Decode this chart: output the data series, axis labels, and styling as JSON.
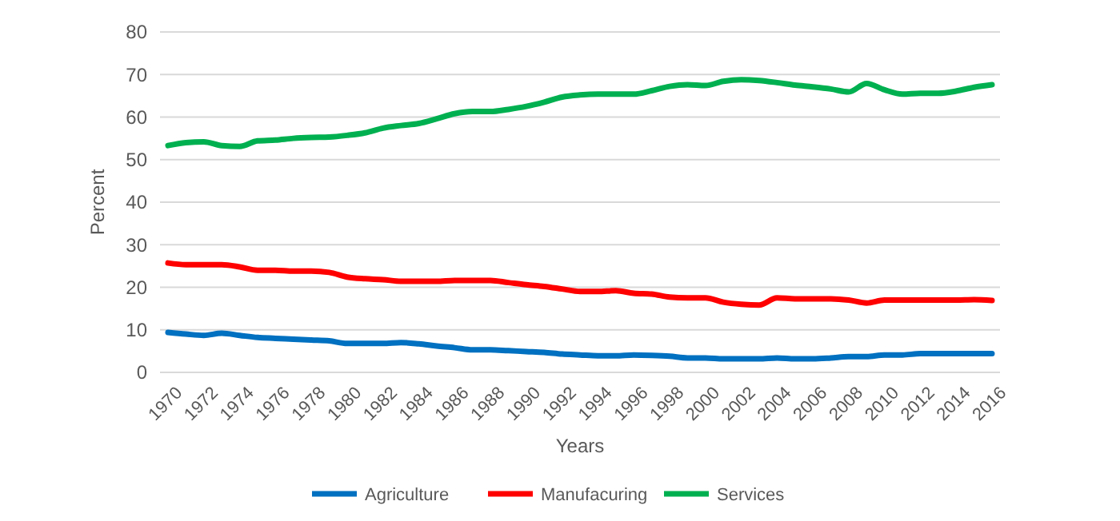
{
  "chart_data": {
    "type": "line",
    "xlabel": "Years",
    "ylabel": "Percent",
    "categories": [
      "1970",
      null,
      "1972",
      null,
      "1974",
      null,
      "1976",
      null,
      "1978",
      null,
      "1980",
      null,
      "1982",
      null,
      "1984",
      null,
      "1986",
      null,
      "1988",
      null,
      "1990",
      null,
      "1992",
      null,
      "1994",
      null,
      "1996",
      null,
      "1998",
      null,
      "2000",
      null,
      "2002",
      null,
      "2004",
      null,
      "2006",
      null,
      "2008",
      null,
      "2010",
      null,
      "2012",
      null,
      "2014",
      null,
      "2016"
    ],
    "series": [
      {
        "name": "Agriculture",
        "color": "#0070c0",
        "values": [
          9.4,
          9,
          8.7,
          9.2,
          8.7,
          8.2,
          8,
          7.8,
          7.6,
          7.4,
          6.8,
          6.8,
          6.8,
          7,
          6.7,
          6.2,
          5.8,
          5.3,
          5.3,
          5.1,
          4.9,
          4.7,
          4.3,
          4.1,
          3.9,
          3.9,
          4.1,
          4,
          3.8,
          3.4,
          3.4,
          3.2,
          3.2,
          3.2,
          3.4,
          3.2,
          3.2,
          3.4,
          3.7,
          3.7,
          4.1,
          4.1,
          4.4,
          4.4,
          4.4,
          4.4,
          4.4
        ]
      },
      {
        "name": "Manufacuring",
        "color": "#ff0000",
        "values": [
          25.7,
          25.3,
          25.3,
          25.3,
          24.8,
          24,
          24,
          23.8,
          23.8,
          23.5,
          22.4,
          22,
          21.8,
          21.4,
          21.4,
          21.4,
          21.6,
          21.6,
          21.6,
          21.1,
          20.6,
          20.2,
          19.6,
          19,
          19,
          19.2,
          18.6,
          18.4,
          17.7,
          17.5,
          17.5,
          16.5,
          16,
          15.8,
          17.5,
          17.3,
          17.3,
          17.3,
          17,
          16.3,
          17,
          17,
          17,
          17,
          17,
          17.1,
          16.9
        ]
      },
      {
        "name": "Services",
        "color": "#00b050",
        "values": [
          53.3,
          54,
          54.2,
          53.3,
          53.1,
          54.4,
          54.6,
          55,
          55.2,
          55.3,
          55.7,
          56.3,
          57.4,
          58,
          58.5,
          59.6,
          60.8,
          61.3,
          61.3,
          61.8,
          62.5,
          63.5,
          64.7,
          65.2,
          65.4,
          65.4,
          65.4,
          66.2,
          67.2,
          67.6,
          67.4,
          68.4,
          68.8,
          68.6,
          68.1,
          67.5,
          67.1,
          66.6,
          65.9,
          67.9,
          66.4,
          65.4,
          65.6,
          65.6,
          66.1,
          67,
          67.6
        ]
      }
    ],
    "ylim": [
      0,
      80
    ],
    "yticks": [
      0,
      10,
      20,
      30,
      40,
      50,
      60,
      70,
      80
    ],
    "grid": "y",
    "legend": "bottom",
    "marker": "none",
    "line_style": "solid"
  }
}
